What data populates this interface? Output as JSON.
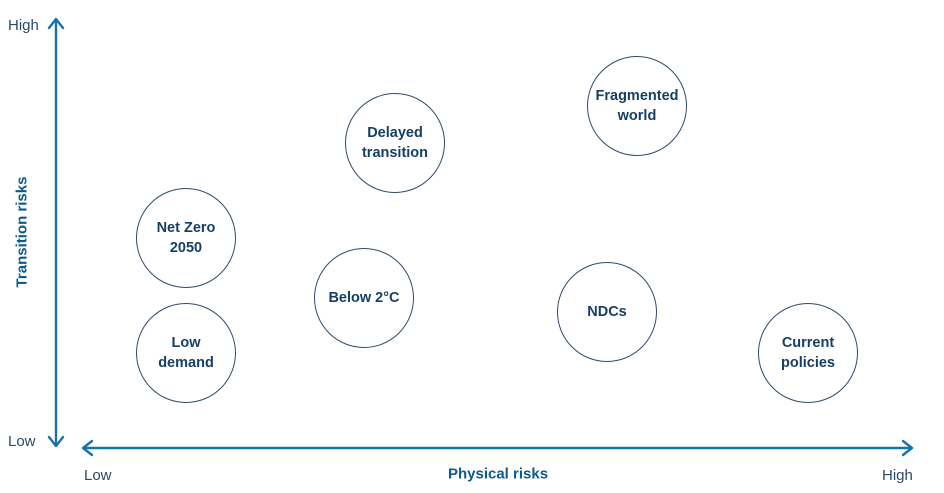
{
  "axes": {
    "y": {
      "title": "Transition risks",
      "low_label": "Low",
      "high_label": "High"
    },
    "x": {
      "title": "Physical risks",
      "low_label": "Low",
      "high_label": "High"
    },
    "color": "#1a73a8"
  },
  "scenarios": [
    {
      "id": "net-zero-2050",
      "label": "Net Zero\n2050"
    },
    {
      "id": "low-demand",
      "label": "Low\ndemand"
    },
    {
      "id": "below-2c",
      "label": "Below 2°C"
    },
    {
      "id": "delayed-transition",
      "label": "Delayed\ntransition"
    },
    {
      "id": "fragmented-world",
      "label": "Fragmented\nworld"
    },
    {
      "id": "ndcs",
      "label": "NDCs"
    },
    {
      "id": "current-policies",
      "label": "Current\npolicies"
    }
  ]
}
